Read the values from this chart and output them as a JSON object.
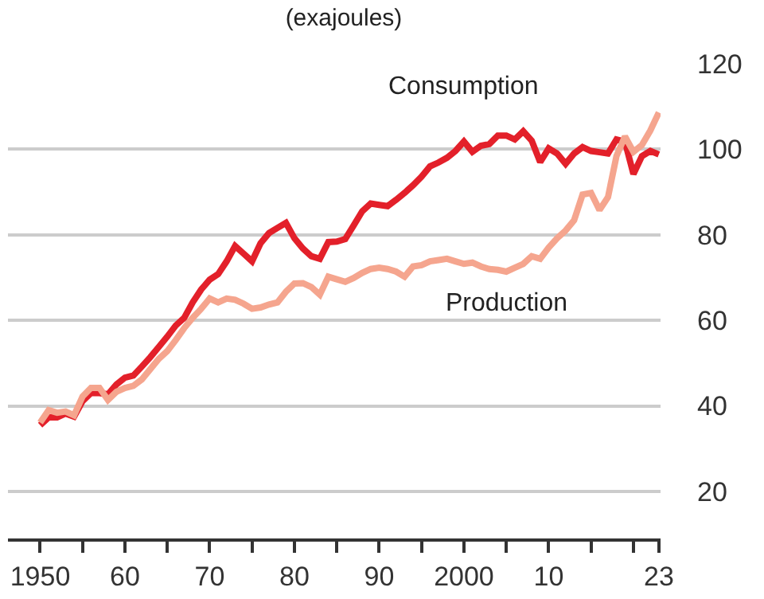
{
  "chart_data": {
    "type": "line",
    "title": "(exajoules)",
    "x": [
      1950,
      1951,
      1952,
      1953,
      1954,
      1955,
      1956,
      1957,
      1958,
      1959,
      1960,
      1961,
      1962,
      1963,
      1964,
      1965,
      1966,
      1967,
      1968,
      1969,
      1970,
      1971,
      1972,
      1973,
      1974,
      1975,
      1976,
      1977,
      1978,
      1979,
      1980,
      1981,
      1982,
      1983,
      1984,
      1985,
      1986,
      1987,
      1988,
      1989,
      1990,
      1991,
      1992,
      1993,
      1994,
      1995,
      1996,
      1997,
      1998,
      1999,
      2000,
      2001,
      2002,
      2003,
      2004,
      2005,
      2006,
      2007,
      2008,
      2009,
      2010,
      2011,
      2012,
      2013,
      2014,
      2015,
      2016,
      2017,
      2018,
      2019,
      2020,
      2021,
      2022,
      2023
    ],
    "series": [
      {
        "name": "Consumption",
        "color": "#e3202a",
        "values": [
          35.5,
          37.3,
          37.3,
          38.2,
          37.5,
          41.1,
          43,
          43,
          42.7,
          45,
          46.6,
          47.1,
          49.2,
          51.4,
          53.8,
          56.2,
          58.8,
          60.6,
          64.2,
          67.2,
          69.5,
          70.8,
          73.8,
          77.4,
          75.6,
          73.8,
          78,
          80.4,
          81.6,
          82.8,
          79.2,
          76.8,
          75,
          74.4,
          78.3,
          78.4,
          79,
          82.2,
          85.5,
          87.3,
          87,
          86.7,
          88.2,
          89.8,
          91.6,
          93.6,
          96,
          96.9,
          98,
          99.6,
          101.8,
          99.4,
          100.8,
          101.2,
          103.2,
          103.2,
          102.3,
          104.2,
          102,
          97,
          100.2,
          99,
          96.6,
          99,
          100.5,
          99.6,
          99.3,
          99,
          102.3,
          101.8,
          94.2,
          98.4,
          99.6,
          98.8
        ]
      },
      {
        "name": "Production",
        "color": "#f5a58e",
        "values": [
          36.1,
          39,
          38.4,
          38.7,
          37.8,
          42.2,
          44.2,
          44.2,
          41.4,
          43.3,
          44.2,
          44.7,
          46.2,
          48.6,
          51,
          52.8,
          55.4,
          58.2,
          60.6,
          62.7,
          65.1,
          64.2,
          65.1,
          64.8,
          63.9,
          62.7,
          63,
          63.7,
          64.2,
          66.7,
          68.6,
          68.7,
          67.8,
          66,
          70.2,
          69.6,
          69,
          69.9,
          71.1,
          72,
          72.3,
          72,
          71.4,
          70.2,
          72.6,
          72.9,
          73.8,
          74.1,
          74.4,
          73.8,
          73.2,
          73.5,
          72.6,
          72,
          71.8,
          71.4,
          72.3,
          73.2,
          75,
          74.4,
          77,
          79.2,
          81,
          83.4,
          89.4,
          89.8,
          85.8,
          88.8,
          98.4,
          103,
          99.4,
          101,
          104.4,
          108.6
        ]
      }
    ],
    "xlim": [
      1946.2,
      2023.2
    ],
    "xticks": [
      {
        "value": 1950,
        "label": "1950"
      },
      {
        "value": 1955,
        "label": null
      },
      {
        "value": 1960,
        "label": "60"
      },
      {
        "value": 1965,
        "label": null
      },
      {
        "value": 1970,
        "label": "70"
      },
      {
        "value": 1975,
        "label": null
      },
      {
        "value": 1980,
        "label": "80"
      },
      {
        "value": 1985,
        "label": null
      },
      {
        "value": 1990,
        "label": "90"
      },
      {
        "value": 1995,
        "label": null
      },
      {
        "value": 2000,
        "label": "2000"
      },
      {
        "value": 2005,
        "label": null
      },
      {
        "value": 2010,
        "label": "10"
      },
      {
        "value": 2015,
        "label": null
      },
      {
        "value": 2020,
        "label": null
      },
      {
        "value": 2023,
        "label": "23"
      }
    ],
    "ylim": [
      9,
      120
    ],
    "yticks": [
      20,
      40,
      60,
      80,
      100,
      120
    ],
    "grid": "y",
    "legend": false,
    "marker": "none",
    "line_style": "solid"
  }
}
